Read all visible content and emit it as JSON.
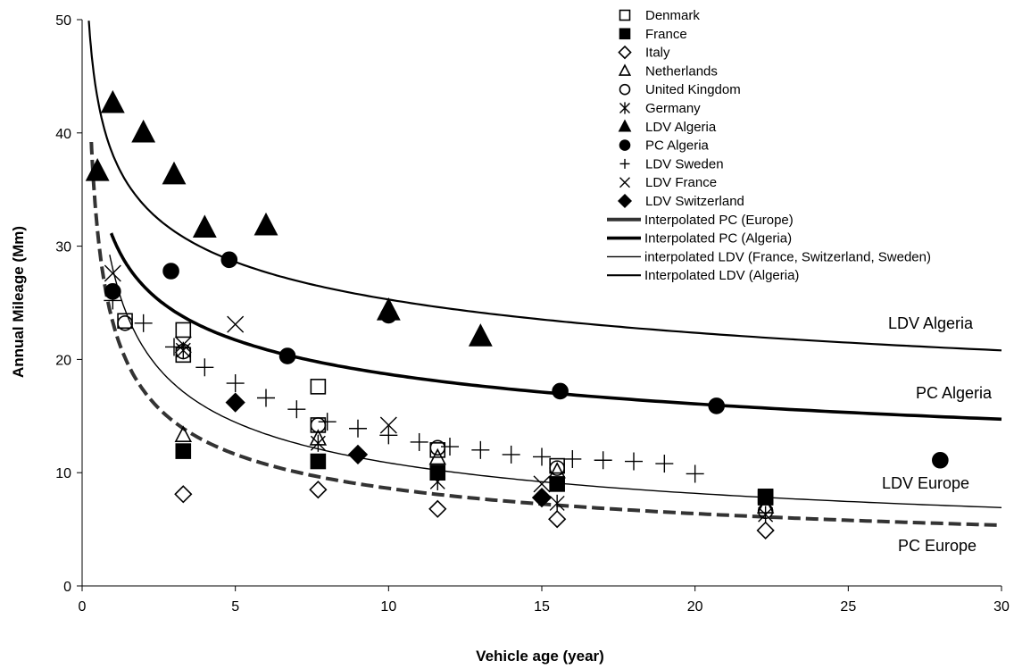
{
  "chart_data": {
    "type": "scatter",
    "xlabel": "Vehicle age (year)",
    "ylabel": "Annual Mileage (Mm)",
    "xlim": [
      0,
      30
    ],
    "ylim": [
      0,
      50
    ],
    "xticks": [
      "0",
      "5",
      "10",
      "15",
      "20",
      "25",
      "30"
    ],
    "yticks": [
      "0",
      "10",
      "20",
      "30",
      "40",
      "50"
    ],
    "grid": false,
    "legend_position": "top-right",
    "series": [
      {
        "name": "Denmark",
        "marker": "square-open",
        "points": [
          [
            1.4,
            23.4
          ],
          [
            3.3,
            22.6
          ],
          [
            3.3,
            20.4
          ],
          [
            7.7,
            17.6
          ],
          [
            7.7,
            14.2
          ],
          [
            11.6,
            12.0
          ],
          [
            15.5,
            10.6
          ],
          [
            22.3,
            7.8
          ]
        ]
      },
      {
        "name": "France",
        "marker": "square-filled",
        "points": [
          [
            3.3,
            11.9
          ],
          [
            7.7,
            11.0
          ],
          [
            11.6,
            10.0
          ],
          [
            15.5,
            9.0
          ],
          [
            22.3,
            7.9
          ]
        ]
      },
      {
        "name": "Italy",
        "marker": "diamond-open",
        "points": [
          [
            3.3,
            8.1
          ],
          [
            7.7,
            8.5
          ],
          [
            11.6,
            6.8
          ],
          [
            15.5,
            5.9
          ],
          [
            22.3,
            4.9
          ]
        ]
      },
      {
        "name": "Netherlands",
        "marker": "triangle-open",
        "points": [
          [
            3.3,
            13.3
          ],
          [
            7.7,
            13.0
          ],
          [
            11.6,
            11.3
          ],
          [
            15.5,
            10.1
          ],
          [
            22.3,
            7.0
          ]
        ]
      },
      {
        "name": "United Kingdom",
        "marker": "circle-open",
        "points": [
          [
            1.4,
            23.2
          ],
          [
            3.3,
            20.7
          ],
          [
            7.7,
            14.2
          ],
          [
            11.6,
            12.2
          ],
          [
            15.5,
            10.4
          ],
          [
            22.3,
            6.6
          ]
        ]
      },
      {
        "name": "Germany",
        "marker": "asterisk",
        "points": [
          [
            3.3,
            20.8
          ],
          [
            7.7,
            12.6
          ],
          [
            11.6,
            9.2
          ],
          [
            15.5,
            7.3
          ],
          [
            22.3,
            6.3
          ]
        ]
      },
      {
        "name": "LDV Algeria",
        "marker": "triangle-filled",
        "points": [
          [
            0.5,
            36.6
          ],
          [
            1,
            42.6
          ],
          [
            2,
            40.0
          ],
          [
            3,
            36.3
          ],
          [
            4,
            31.6
          ],
          [
            6,
            31.8
          ],
          [
            10,
            24.3
          ],
          [
            13,
            22.0
          ]
        ]
      },
      {
        "name": "PC Algeria",
        "marker": "circle-filled",
        "points": [
          [
            1,
            26.0
          ],
          [
            2.9,
            27.8
          ],
          [
            4.8,
            28.8
          ],
          [
            6.7,
            20.3
          ],
          [
            10,
            23.9
          ],
          [
            15.6,
            17.2
          ],
          [
            20.7,
            15.9
          ],
          [
            28,
            11.1
          ]
        ]
      },
      {
        "name": "LDV Sweden",
        "marker": "plus",
        "points": [
          [
            1,
            25.2
          ],
          [
            2,
            23.2
          ],
          [
            3,
            21.1
          ],
          [
            4,
            19.3
          ],
          [
            5,
            17.9
          ],
          [
            6,
            16.6
          ],
          [
            7,
            15.6
          ],
          [
            8,
            14.5
          ],
          [
            9,
            13.9
          ],
          [
            10,
            13.3
          ],
          [
            11,
            12.7
          ],
          [
            12,
            12.3
          ],
          [
            13,
            12.0
          ],
          [
            14,
            11.6
          ],
          [
            15,
            11.4
          ],
          [
            16,
            11.2
          ],
          [
            17,
            11.1
          ],
          [
            18,
            11.0
          ],
          [
            19,
            10.8
          ],
          [
            20,
            9.9
          ]
        ]
      },
      {
        "name": "LDV France",
        "marker": "cross",
        "points": [
          [
            1,
            27.6
          ],
          [
            3.3,
            21.3
          ],
          [
            5,
            23.1
          ],
          [
            10,
            14.2
          ],
          [
            15,
            9.0
          ]
        ]
      },
      {
        "name": "LDV Switzerland",
        "marker": "diamond-filled",
        "points": [
          [
            5,
            16.2
          ],
          [
            9,
            11.6
          ],
          [
            15,
            7.8
          ]
        ]
      }
    ],
    "curves": [
      {
        "name": "Interpolated PC (Europe)",
        "style": "dashed-thick",
        "a": 23.3,
        "b": -0.432,
        "x_from": 0.3,
        "x_to": 30
      },
      {
        "name": "Interpolated PC (Algeria)",
        "style": "solid-thick",
        "a": 30.8,
        "b": -0.217,
        "x_from": 0.95,
        "x_to": 30
      },
      {
        "name": "interpolated LDV (France, Switzerland, Sweden)",
        "style": "solid-thin",
        "a": 28.0,
        "b": -0.411,
        "x_from": 0.9,
        "x_to": 30
      },
      {
        "name": "Interpolated LDV (Algeria)",
        "style": "solid-medium",
        "a": 38.1,
        "b": -0.178,
        "x_from": 0.18,
        "x_to": 30
      }
    ],
    "curve_labels": [
      "LDV Algeria",
      "PC Algeria",
      "LDV Europe",
      "PC Europe"
    ]
  }
}
